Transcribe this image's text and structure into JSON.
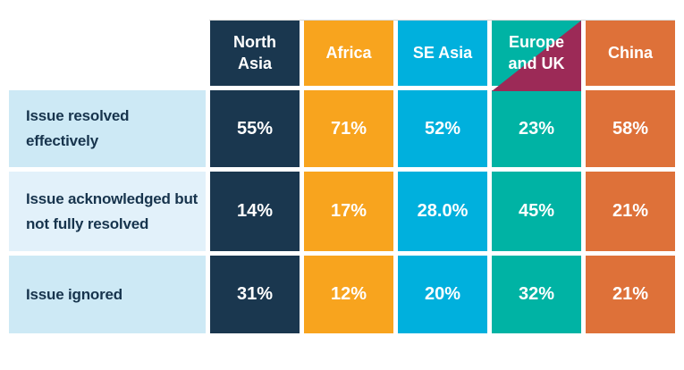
{
  "table": {
    "columns": [
      "North Asia",
      "Africa",
      "SE Asia",
      "Europe and UK",
      "China"
    ],
    "rows": [
      {
        "label": "Issue resolved effectively",
        "values": [
          "55%",
          "71%",
          "52%",
          "23%",
          "58%"
        ]
      },
      {
        "label": "Issue acknowledged but not fully resolved",
        "values": [
          "14%",
          "17%",
          "28.0%",
          "45%",
          "21%"
        ]
      },
      {
        "label": "Issue ignored",
        "values": [
          "31%",
          "12%",
          "20%",
          "32%",
          "21%"
        ]
      }
    ]
  },
  "chart_data": {
    "type": "table",
    "title": "",
    "categories": [
      "North Asia",
      "Africa",
      "SE Asia",
      "Europe and UK",
      "China"
    ],
    "series": [
      {
        "name": "Issue resolved effectively",
        "values": [
          55,
          71,
          52,
          23,
          58
        ]
      },
      {
        "name": "Issue acknowledged but not fully resolved",
        "values": [
          14,
          17,
          28.0,
          45,
          21
        ]
      },
      {
        "name": "Issue ignored",
        "values": [
          31,
          12,
          20,
          32,
          21
        ]
      }
    ],
    "value_format": "percent",
    "layout": {
      "row_labels_left": true,
      "column_headers_top": true,
      "grid": "white gaps between colored cells"
    }
  },
  "colors": {
    "north_asia": "#1a374f",
    "africa": "#f8a41e",
    "se_asia": "#00b0dd",
    "europe_uk": "#00b3a4",
    "china": "#de7139",
    "maroon_accent": "#9c2a57",
    "row_label_a": "#cde9f5",
    "row_label_b": "#e2f1fa",
    "label_text": "#17344d",
    "value_text": "#ffffff",
    "hairline": "#d8d8d8"
  }
}
